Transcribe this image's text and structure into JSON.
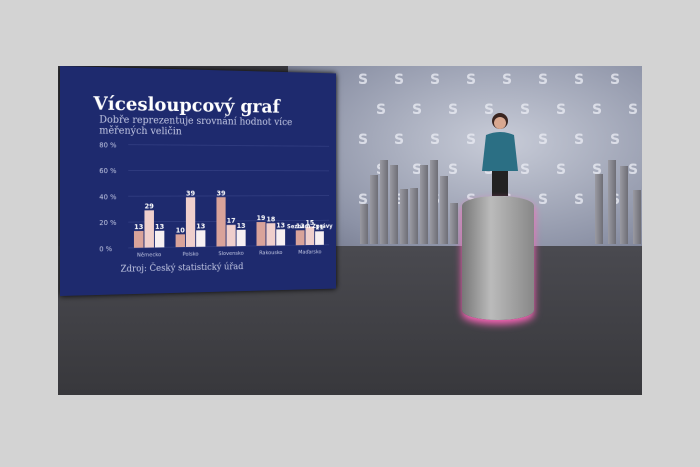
{
  "screen": {
    "title": "Vícesloupcový graf",
    "subtitle": "Dobře reprezentuje srovnání hodnot více měřených veličin",
    "source": "Zdroj: Český statistický úřad",
    "brand": "Seznam Zprávy"
  },
  "chart_data": {
    "type": "bar",
    "title": "Vícesloupcový graf",
    "subtitle": "Dobře reprezentuje srovnání hodnot více měřených veličin",
    "categories": [
      "Německo",
      "Polsko",
      "Slovensko",
      "Rakousko",
      "Maďarsko"
    ],
    "series": [
      {
        "values": [
          13,
          10,
          39,
          19,
          12
        ]
      },
      {
        "values": [
          29,
          39,
          17,
          18,
          15
        ]
      },
      {
        "values": [
          13,
          13,
          13,
          13,
          11
        ]
      }
    ],
    "yticks": [
      "0 %",
      "20 %",
      "40 %",
      "60 %",
      "80 %"
    ],
    "ylim": [
      0,
      80
    ],
    "colors": [
      "#d9a39a",
      "#efcfcc",
      "#f7f0f2"
    ],
    "grid": true
  }
}
